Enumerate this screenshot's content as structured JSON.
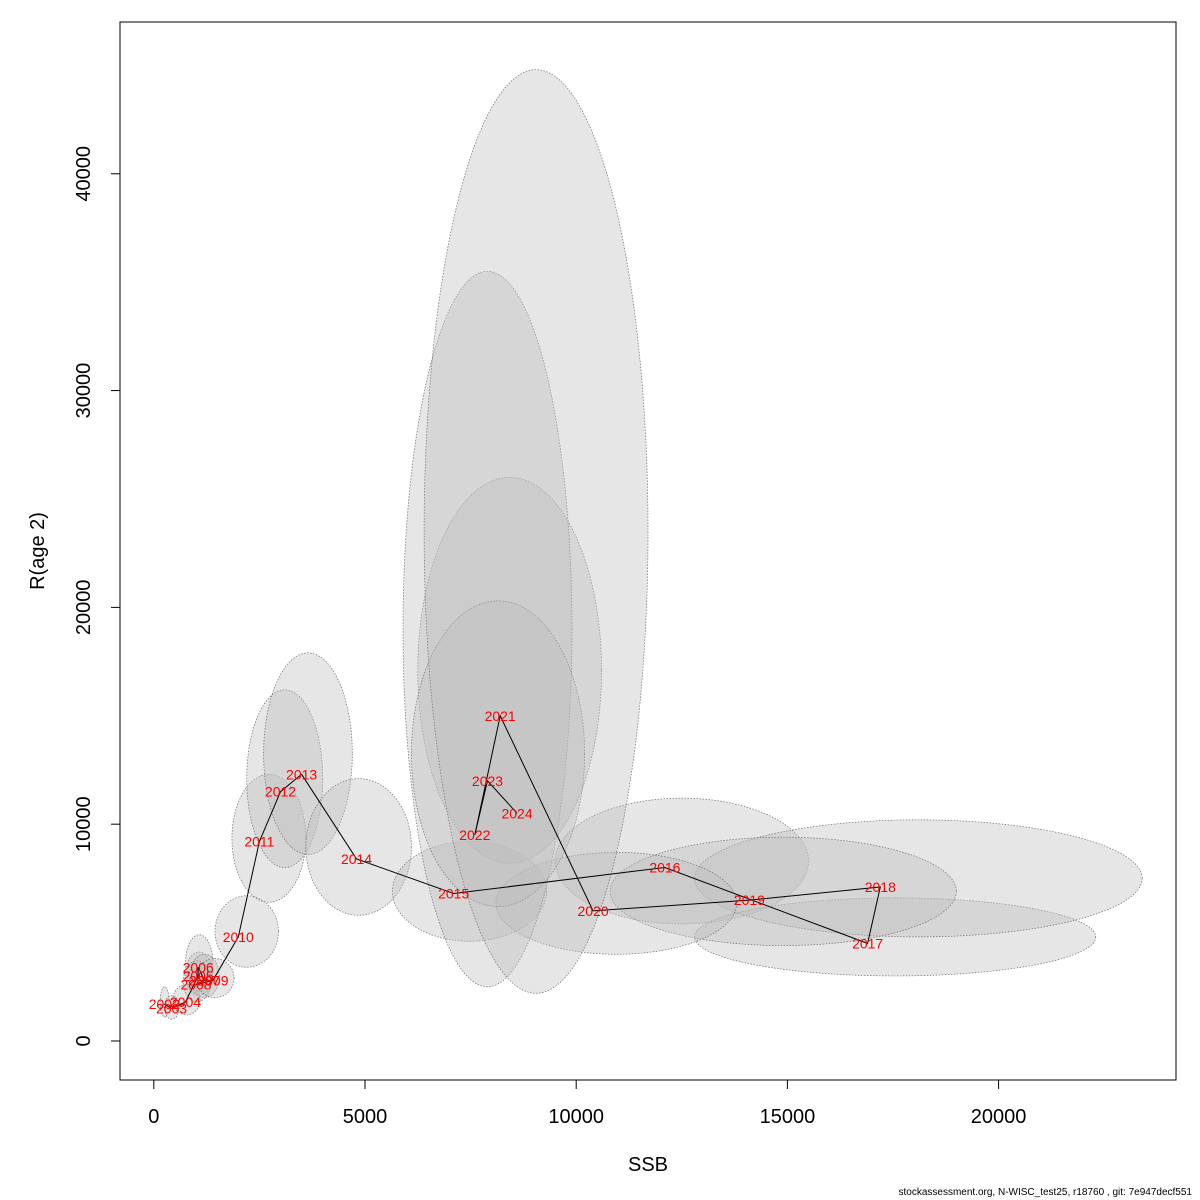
{
  "chart_data": {
    "type": "scatter",
    "xlabel": "SSB",
    "ylabel": "R(age 2)",
    "xlim": [
      -800,
      24200
    ],
    "ylim": [
      -1800,
      47000
    ],
    "xticks": [
      0,
      5000,
      10000,
      15000,
      20000
    ],
    "yticks": [
      0,
      10000,
      20000,
      30000,
      40000
    ],
    "grid": false,
    "colors": {
      "label": "#ff0000",
      "line": "#000000",
      "ellipse_fill": "#bebebe",
      "ellipse_stroke": "#6e6e6e"
    },
    "points": [
      {
        "year": "2002",
        "ssb": 250,
        "r": 1700,
        "ssb_lo": 150,
        "ssb_hi": 360,
        "r_lo": 1100,
        "r_hi": 2500
      },
      {
        "year": "2003",
        "ssb": 420,
        "r": 1500,
        "ssb_lo": 250,
        "ssb_hi": 600,
        "r_lo": 1000,
        "r_hi": 2100
      },
      {
        "year": "2004",
        "ssb": 750,
        "r": 1800,
        "ssb_lo": 450,
        "ssb_hi": 1100,
        "r_lo": 1200,
        "r_hi": 2600
      },
      {
        "year": "2005",
        "ssb": 1050,
        "r": 3000,
        "ssb_lo": 750,
        "ssb_hi": 1400,
        "r_lo": 2100,
        "r_hi": 4100
      },
      {
        "year": "2006",
        "ssb": 1050,
        "r": 3400,
        "ssb_lo": 750,
        "ssb_hi": 1400,
        "r_lo": 2300,
        "r_hi": 4900
      },
      {
        "year": "2007",
        "ssb": 1200,
        "r": 2800,
        "ssb_lo": 850,
        "ssb_hi": 1550,
        "r_lo": 2000,
        "r_hi": 4000
      },
      {
        "year": "2008",
        "ssb": 1000,
        "r": 2600,
        "ssb_lo": 700,
        "ssb_hi": 1350,
        "r_lo": 1800,
        "r_hi": 3700
      },
      {
        "year": "2009",
        "ssb": 1400,
        "r": 2800,
        "ssb_lo": 1000,
        "ssb_hi": 1900,
        "r_lo": 2000,
        "r_hi": 3800
      },
      {
        "year": "2010",
        "ssb": 2000,
        "r": 4800,
        "ssb_lo": 1450,
        "ssb_hi": 2950,
        "r_lo": 3400,
        "r_hi": 6700
      },
      {
        "year": "2011",
        "ssb": 2500,
        "r": 9200,
        "ssb_lo": 1850,
        "ssb_hi": 3600,
        "r_lo": 6400,
        "r_hi": 12300
      },
      {
        "year": "2012",
        "ssb": 3000,
        "r": 11500,
        "ssb_lo": 2200,
        "ssb_hi": 4000,
        "r_lo": 8000,
        "r_hi": 16200
      },
      {
        "year": "2013",
        "ssb": 3500,
        "r": 12300,
        "ssb_lo": 2600,
        "ssb_hi": 4700,
        "r_lo": 8600,
        "r_hi": 17900
      },
      {
        "year": "2014",
        "ssb": 4800,
        "r": 8400,
        "ssb_lo": 3600,
        "ssb_hi": 6100,
        "r_lo": 5800,
        "r_hi": 12100
      },
      {
        "year": "2015",
        "ssb": 7100,
        "r": 6800,
        "ssb_lo": 5650,
        "ssb_hi": 9300,
        "r_lo": 4600,
        "r_hi": 9200
      },
      {
        "year": "2016",
        "ssb": 12100,
        "r": 8000,
        "ssb_lo": 9500,
        "ssb_hi": 15500,
        "r_lo": 5400,
        "r_hi": 11200
      },
      {
        "year": "2017",
        "ssb": 16900,
        "r": 4500,
        "ssb_lo": 12800,
        "ssb_hi": 22300,
        "r_lo": 3000,
        "r_hi": 6600
      },
      {
        "year": "2018",
        "ssb": 17200,
        "r": 7100,
        "ssb_lo": 12800,
        "ssb_hi": 23400,
        "r_lo": 4800,
        "r_hi": 10200
      },
      {
        "year": "2019",
        "ssb": 14100,
        "r": 6500,
        "ssb_lo": 10800,
        "ssb_hi": 19000,
        "r_lo": 4400,
        "r_hi": 9400
      },
      {
        "year": "2020",
        "ssb": 10400,
        "r": 6000,
        "ssb_lo": 8100,
        "ssb_hi": 13800,
        "r_lo": 4000,
        "r_hi": 8700
      },
      {
        "year": "2021",
        "ssb": 8200,
        "r": 15000,
        "ssb_lo": 6250,
        "ssb_hi": 10600,
        "r_lo": 8200,
        "r_hi": 26000
      },
      {
        "year": "2022",
        "ssb": 7600,
        "r": 9500,
        "ssb_lo": 5900,
        "ssb_hi": 9900,
        "r_lo": 2500,
        "r_hi": 35500
      },
      {
        "year": "2023",
        "ssb": 7900,
        "r": 12000,
        "ssb_lo": 6100,
        "ssb_hi": 10200,
        "r_lo": 6200,
        "r_hi": 20300
      },
      {
        "year": "2024",
        "ssb": 8600,
        "r": 10500,
        "ssb_lo": 6400,
        "ssb_hi": 11700,
        "r_lo": 2200,
        "r_hi": 44800
      }
    ]
  },
  "footer": "stockassessment.org, N-WISC_test25, r18760 , git: 7e947decf551"
}
